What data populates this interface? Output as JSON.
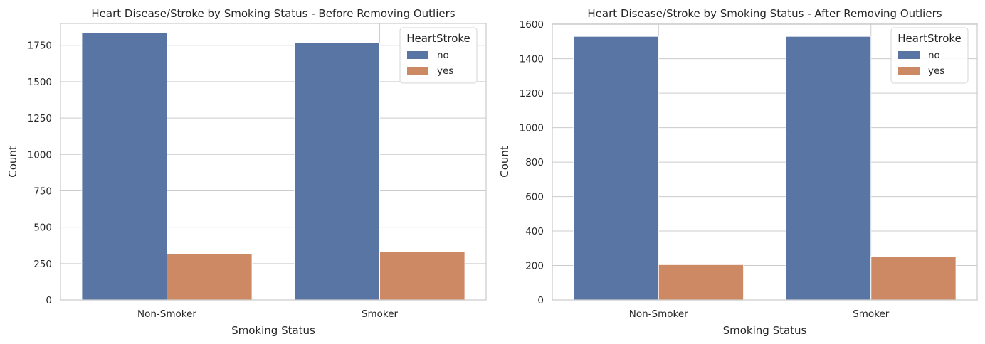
{
  "chart_data": [
    {
      "type": "bar",
      "title": "Heart Disease/Stroke by Smoking Status - Before Removing Outliers",
      "xlabel": "Smoking Status",
      "ylabel": "Count",
      "categories": [
        "Non-Smoker",
        "Smoker"
      ],
      "series": [
        {
          "name": "no",
          "values": [
            1835,
            1767
          ],
          "color": "#5875a4"
        },
        {
          "name": "yes",
          "values": [
            315,
            332
          ],
          "color": "#cc8963"
        }
      ],
      "ylim": [
        0,
        1900
      ],
      "yticks": [
        0,
        250,
        500,
        750,
        1000,
        1250,
        1500,
        1750
      ],
      "grid": true,
      "legend": {
        "title": "HeartStroke",
        "placement": "top-right"
      }
    },
    {
      "type": "bar",
      "title": "Heart Disease/Stroke by Smoking Status - After Removing Outliers",
      "xlabel": "Smoking Status",
      "ylabel": "Count",
      "categories": [
        "Non-Smoker",
        "Smoker"
      ],
      "series": [
        {
          "name": "no",
          "values": [
            1530,
            1530
          ],
          "color": "#5875a4"
        },
        {
          "name": "yes",
          "values": [
            205,
            253
          ],
          "color": "#cc8963"
        }
      ],
      "ylim": [
        0,
        1605
      ],
      "yticks": [
        0,
        200,
        400,
        600,
        800,
        1000,
        1200,
        1400,
        1600
      ],
      "grid": true,
      "legend": {
        "title": "HeartStroke",
        "placement": "top-right"
      }
    }
  ]
}
